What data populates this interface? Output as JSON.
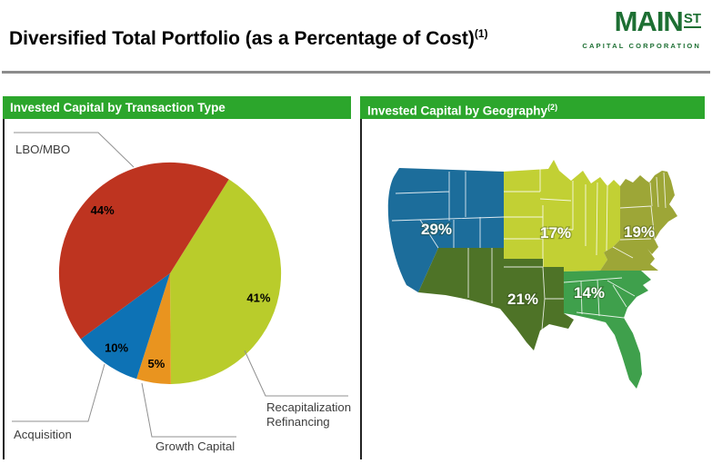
{
  "logo": {
    "main": "MAIN",
    "st": "ST",
    "subtitle": "CAPITAL CORPORATION"
  },
  "page_title": {
    "text": "Diversified Total Portfolio (as a Percentage of Cost)",
    "footnote": "(1)"
  },
  "panels": {
    "transaction_type": {
      "header": "Invested Capital by Transaction Type"
    },
    "geography": {
      "header": "Invested Capital by Geography",
      "footnote": "(2)"
    }
  },
  "colors": {
    "header_green": "#2CA62C",
    "logo_green": "#1D6F33",
    "rule_gray": "#8C8C8C",
    "pie_red": "#BE3420",
    "pie_yellow_green": "#B9CC2B",
    "pie_blue": "#0D72B5",
    "pie_orange": "#E9941F",
    "map_blue": "#1C6D9B",
    "map_chartreuse": "#C2D034",
    "map_olive": "#9DA637",
    "map_dark_green": "#4E7327",
    "map_medium_green": "#3FA04C"
  },
  "chart_data": [
    {
      "type": "pie",
      "title": "Invested Capital by Transaction Type",
      "start_angle_deg": 32,
      "legend_position": "callout-labels",
      "slices": [
        {
          "id": "recapitalization",
          "label": "Recapitalization/Refinancing",
          "value": 41,
          "display": "41%",
          "color": "#B9CC2B"
        },
        {
          "id": "growth-capital",
          "label": "Growth Capital",
          "value": 5,
          "display": "5%",
          "color": "#E9941F"
        },
        {
          "id": "acquisition",
          "label": "Acquisition",
          "value": 10,
          "display": "10%",
          "color": "#0D72B5"
        },
        {
          "id": "lbo-mbo",
          "label": "LBO/MBO",
          "value": 44,
          "display": "44%",
          "color": "#BE3420"
        }
      ]
    },
    {
      "type": "map",
      "title": "Invested Capital by Geography",
      "regions": [
        {
          "id": "west",
          "name": "West",
          "value": 29,
          "display": "29%",
          "color": "#1C6D9B"
        },
        {
          "id": "midwest",
          "name": "Midwest",
          "value": 17,
          "display": "17%",
          "color": "#C2D034"
        },
        {
          "id": "northeast",
          "name": "Northeast",
          "value": 19,
          "display": "19%",
          "color": "#9DA637"
        },
        {
          "id": "southwest",
          "name": "Southwest",
          "value": 21,
          "display": "21%",
          "color": "#4E7327"
        },
        {
          "id": "southeast",
          "name": "Southeast",
          "value": 14,
          "display": "14%",
          "color": "#3FA04C"
        }
      ]
    }
  ]
}
